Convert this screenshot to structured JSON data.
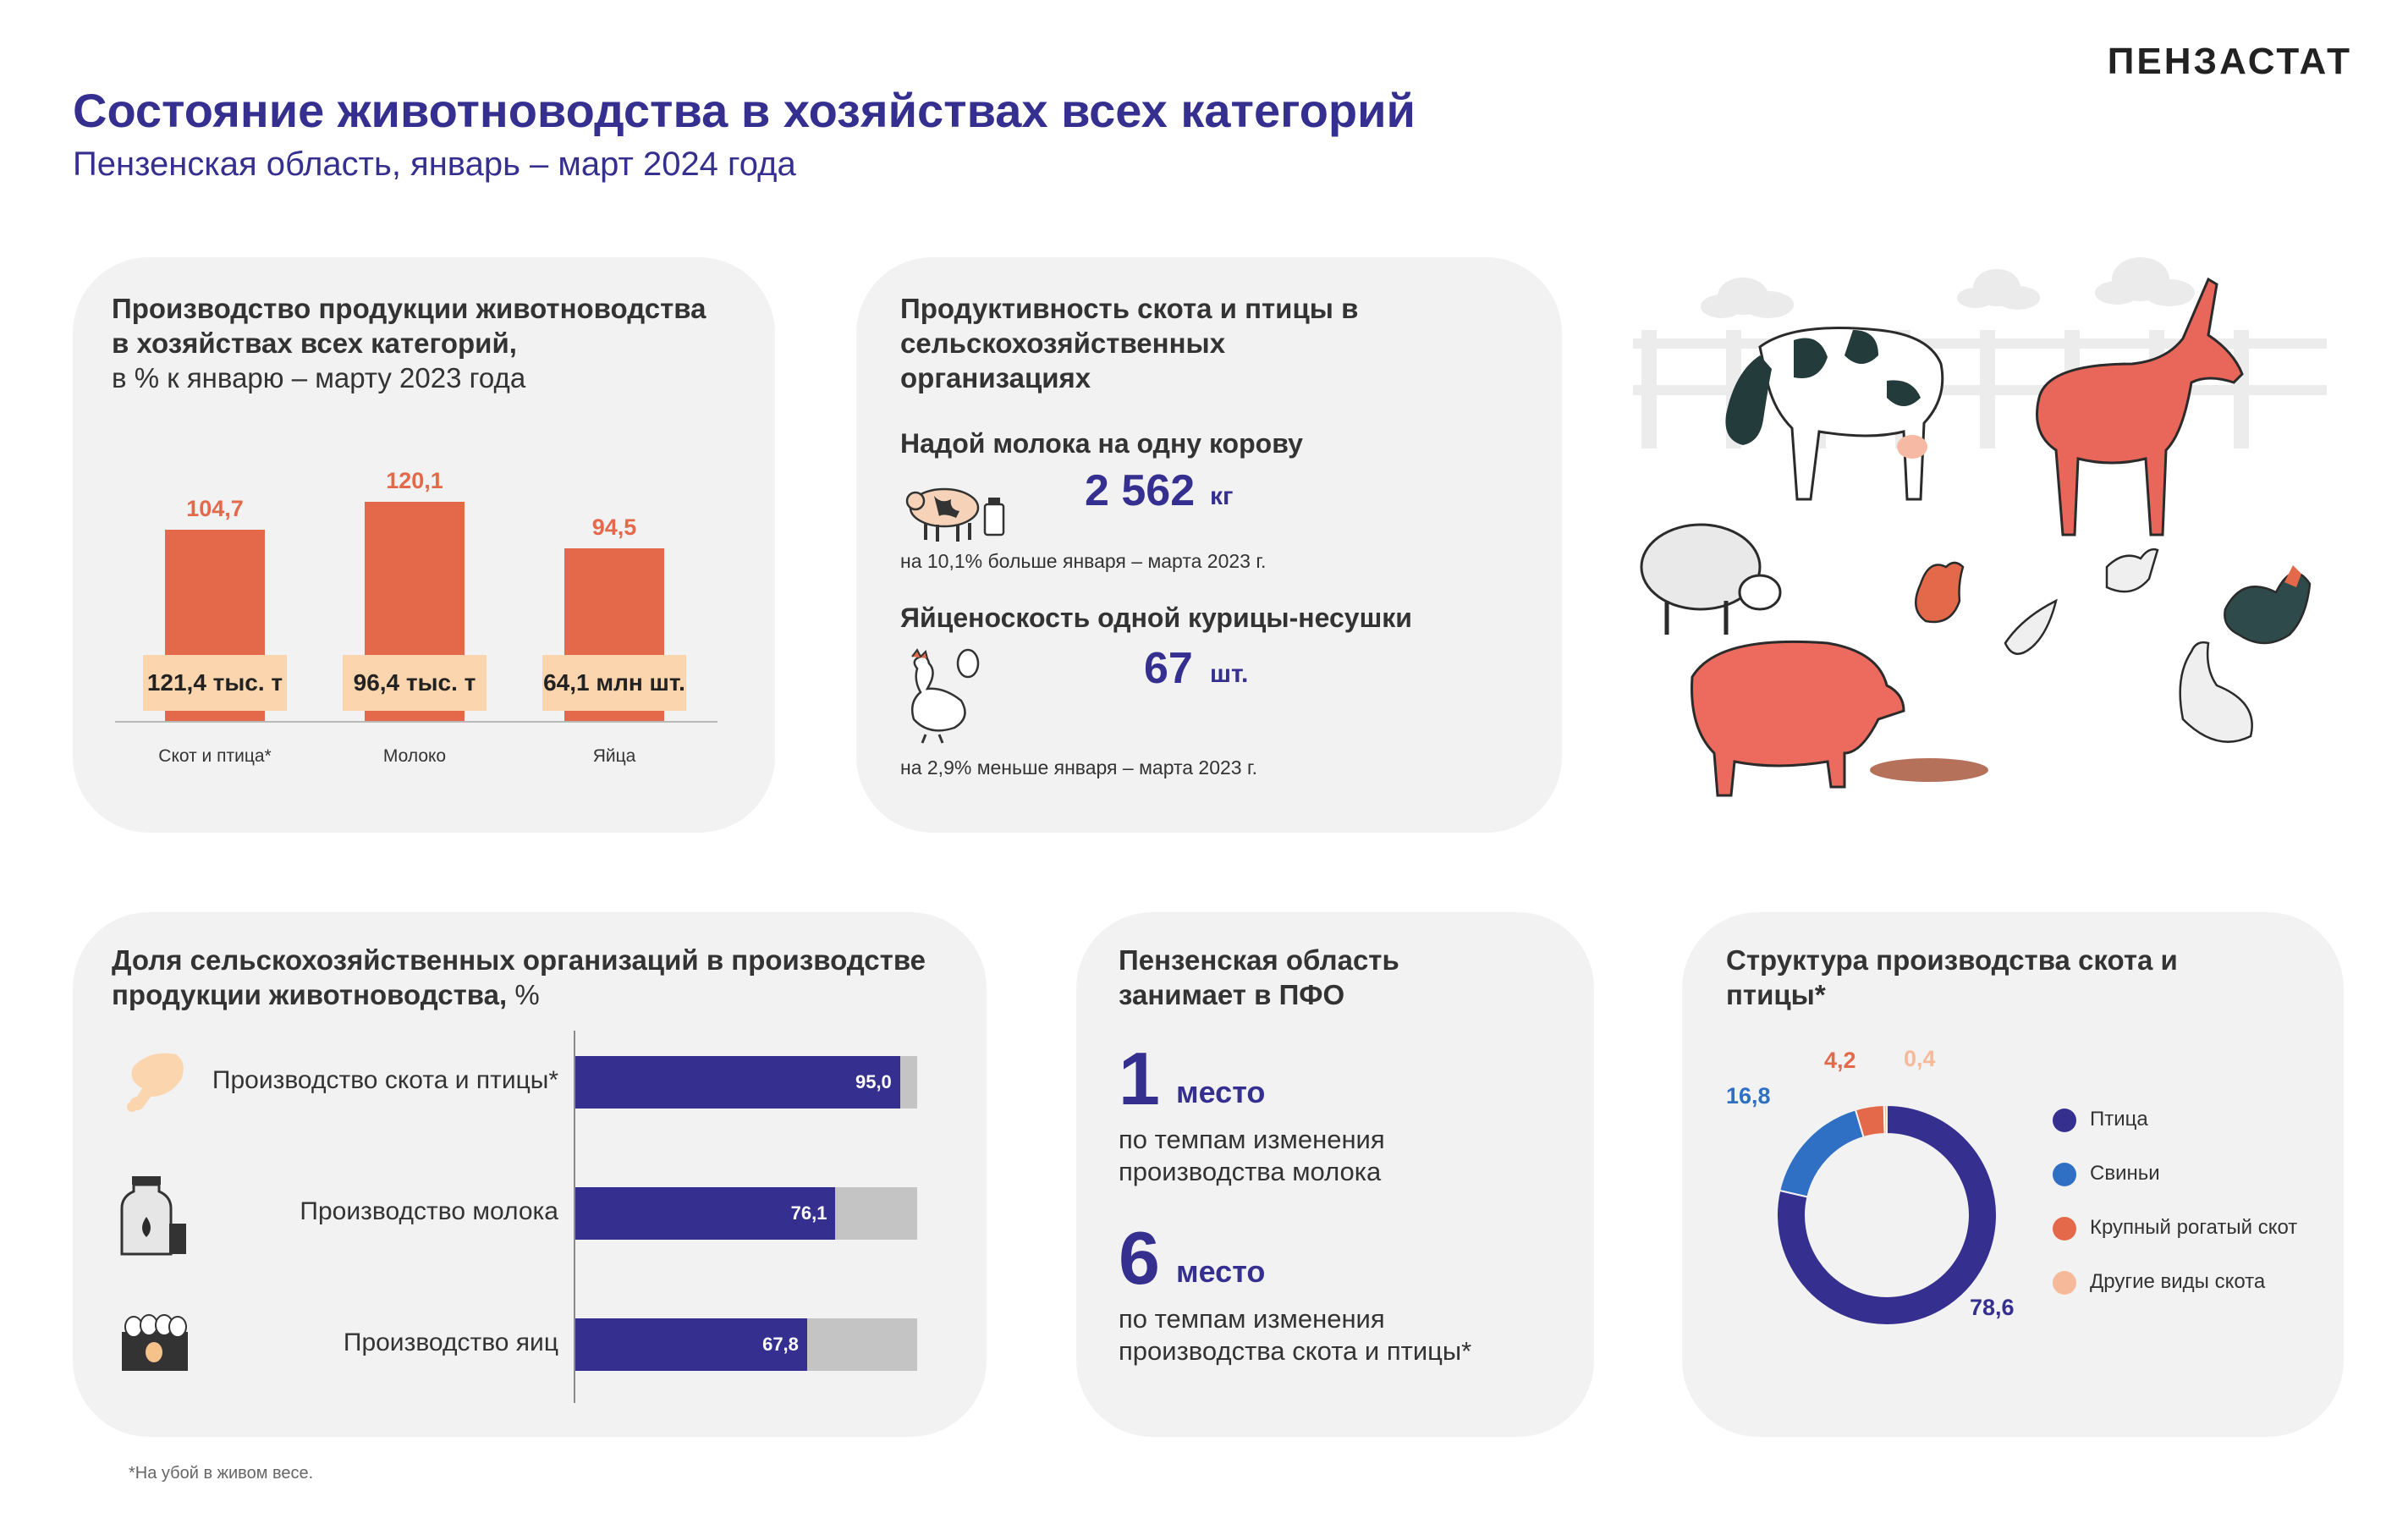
{
  "header": {
    "brand": "ПЕНЗАСТАТ",
    "title": "Состояние животноводства в хозяйствах всех категорий",
    "subtitle": "Пензенская область, январь – март 2024 года"
  },
  "production": {
    "title_line1": "Производство продукции животноводства",
    "title_line2": "в хозяйствах всех категорий,",
    "title_line3": "в % к январю – марту 2023 года",
    "chart_data": {
      "type": "bar",
      "categories": [
        "Скот и птица*",
        "Молоко",
        "Яйца"
      ],
      "values": [
        104.7,
        120.1,
        94.5
      ],
      "value_labels": [
        "104,7",
        "120,1",
        "94,5"
      ],
      "volumes": [
        "121,4 тыс. т",
        "96,4 тыс. т",
        "64,1 млн шт."
      ],
      "ylim": [
        0,
        130
      ],
      "color": "#e4694a"
    }
  },
  "productivity": {
    "title_line1": "Продуктивность скота и птицы в",
    "title_line2": "сельскохозяйственных",
    "title_line3": "организациях",
    "milk_head": "Надой молока на одну корову",
    "milk_value": "2 562",
    "milk_unit": "кг",
    "milk_note": "на 10,1% больше января – марта 2023 г.",
    "egg_head": "Яйценоскость одной курицы-несушки",
    "egg_value": "67",
    "egg_unit": "шт.",
    "egg_note": "на 2,9% меньше января – марта 2023 г.",
    "milk_icon": "cow-milk-icon",
    "egg_icon": "hen-egg-icon"
  },
  "share": {
    "title_line1": "Доля сельскохозяйственных организаций в производстве",
    "title_line2": "продукции животноводства,",
    "title_unit": " %",
    "chart_data": {
      "type": "bar",
      "orientation": "horizontal",
      "categories": [
        "Производство скота и птицы*",
        "Производство молока",
        "Производство яиц"
      ],
      "values": [
        95.0,
        76.1,
        67.8
      ],
      "value_labels": [
        "95,0",
        "76,1",
        "67,8"
      ],
      "xlim": [
        0,
        100
      ],
      "fill_color": "#35308f",
      "track_color": "#c4c4c4"
    },
    "icons": [
      "meat-icon",
      "milk-can-icon",
      "egg-box-icon"
    ]
  },
  "ranking": {
    "title_line1": "Пензенская область",
    "title_line2": "занимает в ПФО",
    "items": [
      {
        "place": "1",
        "word": "место",
        "line1": "по темпам изменения",
        "line2": "производства молока"
      },
      {
        "place": "6",
        "word": "место",
        "line1": "по темпам изменения",
        "line2": "производства скота и птицы*"
      }
    ]
  },
  "structure": {
    "title_line1": "Структура производства скота и",
    "title_line2": "птицы*",
    "chart_data": {
      "type": "pie",
      "donut": true,
      "categories": [
        "Птица",
        "Свиньи",
        "Крупный рогатый скот",
        "Другие виды скота"
      ],
      "values": [
        78.6,
        16.8,
        4.2,
        0.4
      ],
      "value_labels": [
        "78,6",
        "16,8",
        "4,2",
        "0,4"
      ],
      "colors": [
        "#35308f",
        "#2f6fc4",
        "#e4694a",
        "#f6b99a"
      ],
      "legend": "right"
    }
  },
  "footnote": "*На убой в живом весе.",
  "illustration": "farm-animals-illustration"
}
